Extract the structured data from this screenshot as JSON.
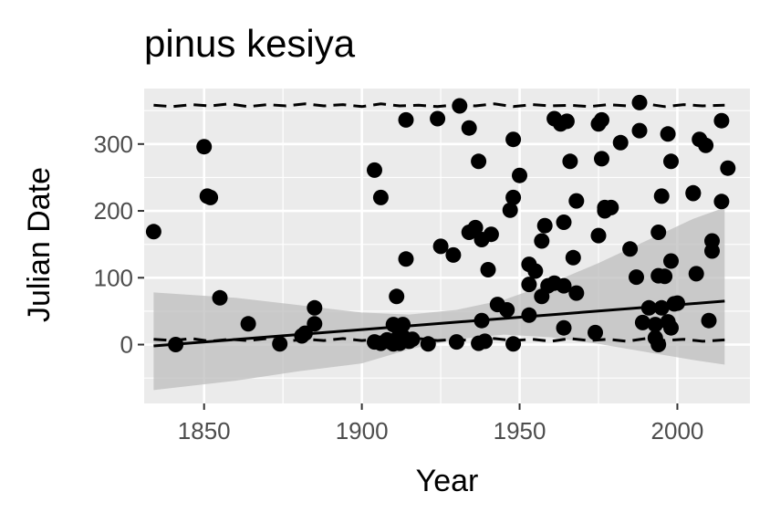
{
  "chart_data": {
    "type": "scatter",
    "title": "pinus kesiya",
    "xlabel": "Year",
    "ylabel": "Julian Date",
    "xlim": [
      1831,
      2023
    ],
    "ylim": [
      -88,
      383
    ],
    "x_ticks": [
      1850,
      1900,
      1950,
      2000
    ],
    "y_ticks": [
      0,
      100,
      200,
      300
    ],
    "grid": true,
    "legend": "none",
    "colors": {
      "panel": "#ebebeb",
      "grid": "#ffffff",
      "points": "#000000",
      "ribbon": "#bdbdbd",
      "text": "#4d4d4d"
    },
    "points": [
      [
        1834,
        169
      ],
      [
        1841,
        0
      ],
      [
        1850,
        296
      ],
      [
        1851,
        222
      ],
      [
        1852,
        220
      ],
      [
        1855,
        70
      ],
      [
        1864,
        31
      ],
      [
        1874,
        1
      ],
      [
        1881,
        13
      ],
      [
        1882,
        17
      ],
      [
        1885,
        55
      ],
      [
        1885,
        31
      ],
      [
        1904,
        261
      ],
      [
        1904,
        4
      ],
      [
        1906,
        220
      ],
      [
        1906,
        2
      ],
      [
        1908,
        7
      ],
      [
        1909,
        4
      ],
      [
        1910,
        30
      ],
      [
        1910,
        1
      ],
      [
        1911,
        72
      ],
      [
        1911,
        8
      ],
      [
        1912,
        2
      ],
      [
        1912,
        20
      ],
      [
        1913,
        12
      ],
      [
        1913,
        30
      ],
      [
        1914,
        336
      ],
      [
        1914,
        128
      ],
      [
        1915,
        5
      ],
      [
        1916,
        8
      ],
      [
        1921,
        1
      ],
      [
        1924,
        338
      ],
      [
        1925,
        147
      ],
      [
        1929,
        134
      ],
      [
        1930,
        4
      ],
      [
        1931,
        357
      ],
      [
        1934,
        168
      ],
      [
        1934,
        324
      ],
      [
        1936,
        175
      ],
      [
        1937,
        274
      ],
      [
        1937,
        2
      ],
      [
        1938,
        157
      ],
      [
        1938,
        36
      ],
      [
        1939,
        5
      ],
      [
        1940,
        112
      ],
      [
        1941,
        165
      ],
      [
        1943,
        60
      ],
      [
        1946,
        52
      ],
      [
        1947,
        201
      ],
      [
        1948,
        1
      ],
      [
        1948,
        220
      ],
      [
        1948,
        307
      ],
      [
        1950,
        253
      ],
      [
        1953,
        120
      ],
      [
        1953,
        90
      ],
      [
        1953,
        44
      ],
      [
        1955,
        110
      ],
      [
        1957,
        155
      ],
      [
        1957,
        72
      ],
      [
        1958,
        178
      ],
      [
        1959,
        88
      ],
      [
        1961,
        338
      ],
      [
        1961,
        92
      ],
      [
        1963,
        330
      ],
      [
        1964,
        183
      ],
      [
        1964,
        88
      ],
      [
        1964,
        25
      ],
      [
        1965,
        334
      ],
      [
        1966,
        274
      ],
      [
        1967,
        130
      ],
      [
        1968,
        77
      ],
      [
        1968,
        215
      ],
      [
        1974,
        18
      ],
      [
        1975,
        163
      ],
      [
        1975,
        330
      ],
      [
        1976,
        336
      ],
      [
        1976,
        278
      ],
      [
        1977,
        205
      ],
      [
        1977,
        200
      ],
      [
        1979,
        205
      ],
      [
        1982,
        302
      ],
      [
        1985,
        143
      ],
      [
        1987,
        101
      ],
      [
        1988,
        362
      ],
      [
        1988,
        320
      ],
      [
        1989,
        33
      ],
      [
        1991,
        55
      ],
      [
        1993,
        30
      ],
      [
        1993,
        10
      ],
      [
        1994,
        168
      ],
      [
        1994,
        103
      ],
      [
        1994,
        0
      ],
      [
        1995,
        222
      ],
      [
        1995,
        55
      ],
      [
        1996,
        102
      ],
      [
        1997,
        34
      ],
      [
        1997,
        315
      ],
      [
        1998,
        25
      ],
      [
        1998,
        125
      ],
      [
        1998,
        274
      ],
      [
        1999,
        61
      ],
      [
        2000,
        62
      ],
      [
        2005,
        227
      ],
      [
        2005,
        226
      ],
      [
        2006,
        106
      ],
      [
        2007,
        307
      ],
      [
        2009,
        298
      ],
      [
        2010,
        36
      ],
      [
        2011,
        140
      ],
      [
        2011,
        155
      ],
      [
        2014,
        335
      ],
      [
        2014,
        214
      ],
      [
        2016,
        264
      ]
    ],
    "trend_line": {
      "x": [
        1834,
        2015
      ],
      "y": [
        -2,
        65
      ]
    },
    "ribbon": {
      "x": [
        1834,
        1860,
        1880,
        1900,
        1915,
        1930,
        1945,
        1960,
        1975,
        1990,
        2005,
        2015
      ],
      "upper": [
        78,
        70,
        59,
        48,
        45,
        52,
        67,
        92,
        122,
        155,
        188,
        205
      ],
      "lower": [
        -68,
        -54,
        -40,
        -28,
        -7,
        8,
        15,
        11,
        1,
        -11,
        -23,
        -30
      ]
    },
    "upper_dashed": {
      "x": [
        1834,
        1840,
        1846,
        1852,
        1858,
        1864,
        1870,
        1876,
        1882,
        1888,
        1894,
        1900,
        1906,
        1912,
        1918,
        1924,
        1930,
        1936,
        1942,
        1948,
        1954,
        1960,
        1966,
        1972,
        1978,
        1984,
        1990,
        1996,
        2002,
        2008,
        2015
      ],
      "y": [
        358,
        356,
        359,
        357,
        360,
        356,
        359,
        357,
        360,
        357,
        359,
        356,
        360,
        357,
        358,
        356,
        359,
        357,
        360,
        356,
        359,
        357,
        358,
        356,
        359,
        357,
        360,
        356,
        359,
        357,
        358
      ]
    },
    "lower_dashed": {
      "x": [
        1834,
        1840,
        1846,
        1852,
        1858,
        1864,
        1870,
        1876,
        1882,
        1888,
        1894,
        1900,
        1906,
        1912,
        1918,
        1924,
        1930,
        1936,
        1942,
        1948,
        1954,
        1960,
        1966,
        1972,
        1978,
        1984,
        1990,
        1996,
        2002,
        2008,
        2015
      ],
      "y": [
        8,
        6,
        9,
        5,
        8,
        6,
        9,
        5,
        8,
        6,
        9,
        6,
        8,
        5,
        9,
        6,
        8,
        5,
        9,
        6,
        8,
        5,
        9,
        6,
        8,
        5,
        9,
        6,
        8,
        5,
        7
      ]
    }
  }
}
